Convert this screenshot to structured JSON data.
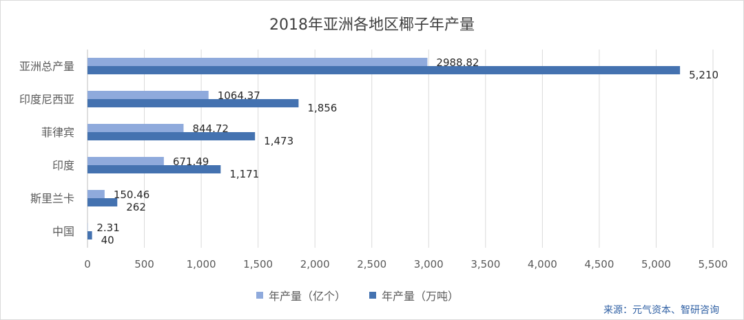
{
  "chart_data": {
    "type": "bar",
    "orientation": "horizontal",
    "title": "2018年亚洲各地区椰子年产量",
    "categories": [
      "亚洲总产量",
      "印度尼西亚",
      "菲律宾",
      "印度",
      "斯里兰卡",
      "中国"
    ],
    "series": [
      {
        "name": "年产量（亿个）",
        "color": "#8faadc",
        "values": [
          2988.82,
          1064.37,
          844.72,
          671.49,
          150.46,
          2.31
        ],
        "labels": [
          "2988.82",
          "1064.37",
          "844.72",
          "671.49",
          "150.46",
          "2.31"
        ]
      },
      {
        "name": "年产量（万吨）",
        "color": "#4472b0",
        "values": [
          5210,
          1856,
          1473,
          1171,
          262,
          40
        ],
        "labels": [
          "5,210",
          "1,856",
          "1,473",
          "1,171",
          "262",
          "40"
        ]
      }
    ],
    "xlim": [
      0,
      5500
    ],
    "xticks": [
      "0",
      "500",
      "1,000",
      "1,500",
      "2,000",
      "2,500",
      "3,000",
      "3,500",
      "4,000",
      "4,500",
      "5,000",
      "5,500"
    ],
    "grid": true,
    "legend_position": "bottom"
  },
  "source": "来源：元气资本、智研咨询"
}
